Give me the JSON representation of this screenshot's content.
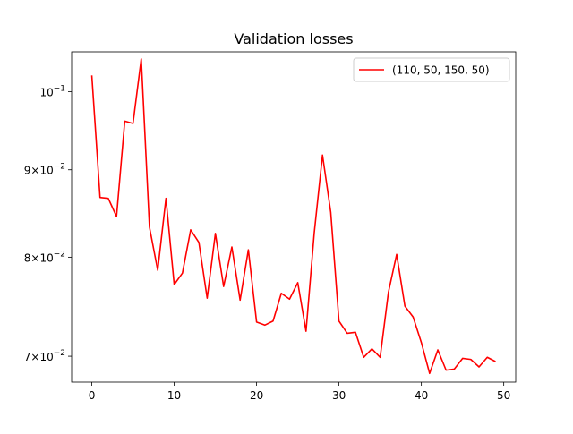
{
  "chart_data": {
    "type": "line",
    "title": "Validation losses",
    "xlabel": "",
    "ylabel": "",
    "yscale": "log",
    "xlim": [
      -2.45,
      51.45
    ],
    "ylim": [
      0.0676,
      0.1055
    ],
    "x_ticks": [
      0,
      10,
      20,
      30,
      40,
      50
    ],
    "x_tick_labels": [
      "0",
      "10",
      "20",
      "30",
      "40",
      "50"
    ],
    "y_ticks": [
      0.07,
      0.08,
      0.09,
      0.1
    ],
    "y_tick_labels": [
      {
        "base": "7",
        "exp": "-2"
      },
      {
        "base": "8",
        "exp": "-2"
      },
      {
        "base": "9",
        "exp": "-2"
      },
      {
        "base": "10",
        "exp": "-1"
      }
    ],
    "y_tick_mult": "×",
    "grid": false,
    "legend_position": "top-right",
    "series": [
      {
        "name": "(110, 50, 150, 50)",
        "color": "#ff0000",
        "x": [
          0,
          1,
          2,
          3,
          4,
          5,
          6,
          7,
          8,
          9,
          10,
          11,
          12,
          13,
          14,
          15,
          16,
          17,
          18,
          19,
          20,
          21,
          22,
          23,
          24,
          25,
          26,
          27,
          28,
          29,
          30,
          31,
          32,
          33,
          34,
          35,
          36,
          37,
          38,
          39,
          40,
          41,
          42,
          43,
          44,
          45,
          46,
          47,
          48,
          49
        ],
        "y": [
          0.1022,
          0.0867,
          0.0866,
          0.0845,
          0.0961,
          0.0958,
          0.1045,
          0.0833,
          0.0786,
          0.0866,
          0.0771,
          0.0783,
          0.083,
          0.0816,
          0.0757,
          0.0826,
          0.0769,
          0.0811,
          0.0755,
          0.0808,
          0.0733,
          0.073,
          0.0734,
          0.0762,
          0.0756,
          0.0773,
          0.0724,
          0.0827,
          0.0918,
          0.085,
          0.0734,
          0.0722,
          0.0723,
          0.0699,
          0.0707,
          0.0699,
          0.0763,
          0.0803,
          0.0749,
          0.0738,
          0.0713,
          0.0684,
          0.0706,
          0.0687,
          0.0688,
          0.0698,
          0.0697,
          0.069,
          0.0699,
          0.0695
        ]
      }
    ]
  }
}
